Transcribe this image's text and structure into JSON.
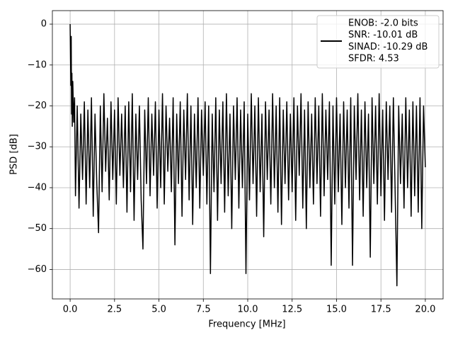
{
  "chart_data": {
    "type": "line",
    "xlabel": "Frequency [MHz]",
    "ylabel": "PSD [dB]",
    "grid": true,
    "legend": "upper right",
    "xlim": [
      -1.0,
      21.0
    ],
    "ylim": [
      -67.2,
      3.3
    ],
    "xticks": [
      {
        "value": 0,
        "label": "0.0"
      },
      2.5,
      {
        "value": 5,
        "label": "5.0"
      },
      7.5,
      {
        "value": 10,
        "label": "10.0"
      },
      12.5,
      {
        "value": 15,
        "label": "15.0"
      },
      17.5,
      {
        "value": 20,
        "label": "20.0"
      }
    ],
    "yticks": [
      0,
      {
        "value": -10,
        "label": "−10"
      },
      {
        "value": -20,
        "label": "−20"
      },
      {
        "value": -30,
        "label": "−30"
      },
      {
        "value": -40,
        "label": "−40"
      },
      {
        "value": -50,
        "label": "−50"
      },
      {
        "value": -60,
        "label": "−60"
      }
    ],
    "x": [
      0,
      0.02,
      0.04,
      0.06,
      0.08,
      0.1,
      0.12,
      0.15,
      0.2,
      0.25,
      0.3,
      0.4,
      0.5,
      0.6,
      0.7,
      0.8,
      0.9,
      1.0,
      1.1,
      1.2,
      1.3,
      1.4,
      1.5,
      1.6,
      1.7,
      1.8,
      1.9,
      2.0,
      2.1,
      2.2,
      2.3,
      2.4,
      2.5,
      2.6,
      2.7,
      2.8,
      2.9,
      3.0,
      3.1,
      3.2,
      3.3,
      3.4,
      3.5,
      3.6,
      3.7,
      3.8,
      3.9,
      4.0,
      4.1,
      4.2,
      4.3,
      4.4,
      4.5,
      4.6,
      4.7,
      4.8,
      4.9,
      5.0,
      5.1,
      5.2,
      5.3,
      5.4,
      5.5,
      5.6,
      5.7,
      5.8,
      5.9,
      6.0,
      6.1,
      6.2,
      6.3,
      6.4,
      6.5,
      6.6,
      6.7,
      6.8,
      6.9,
      7.0,
      7.1,
      7.2,
      7.3,
      7.4,
      7.5,
      7.6,
      7.7,
      7.8,
      7.9,
      8.0,
      8.1,
      8.2,
      8.3,
      8.4,
      8.5,
      8.6,
      8.7,
      8.8,
      8.9,
      9.0,
      9.1,
      9.2,
      9.3,
      9.4,
      9.5,
      9.6,
      9.7,
      9.8,
      9.9,
      10.0,
      10.1,
      10.2,
      10.3,
      10.4,
      10.5,
      10.6,
      10.7,
      10.8,
      10.9,
      11.0,
      11.1,
      11.2,
      11.3,
      11.4,
      11.5,
      11.6,
      11.7,
      11.8,
      11.9,
      12.0,
      12.1,
      12.2,
      12.3,
      12.4,
      12.5,
      12.6,
      12.7,
      12.8,
      12.9,
      13.0,
      13.1,
      13.2,
      13.3,
      13.4,
      13.5,
      13.6,
      13.7,
      13.8,
      13.9,
      14.0,
      14.1,
      14.2,
      14.3,
      14.4,
      14.5,
      14.6,
      14.7,
      14.8,
      14.9,
      15.0,
      15.1,
      15.2,
      15.3,
      15.4,
      15.5,
      15.6,
      15.7,
      15.8,
      15.9,
      16.0,
      16.1,
      16.2,
      16.3,
      16.4,
      16.5,
      16.6,
      16.7,
      16.8,
      16.9,
      17.0,
      17.1,
      17.2,
      17.3,
      17.4,
      17.5,
      17.6,
      17.7,
      17.8,
      17.9,
      18.0,
      18.1,
      18.2,
      18.3,
      18.4,
      18.5,
      18.6,
      18.7,
      18.8,
      18.9,
      19.0,
      19.1,
      19.2,
      19.3,
      19.4,
      19.5,
      19.6,
      19.7,
      19.8,
      19.9,
      20.0
    ],
    "series": [
      {
        "name": [
          "ENOB: -2.0 bits",
          "SNR: -10.01 dB",
          "SINAD: -10.29 dB",
          "SFDR: 4.53"
        ],
        "color": "#000000",
        "values": [
          0,
          -8,
          -15,
          -3,
          -22,
          -12,
          -25,
          -14,
          -24,
          -18,
          -42,
          -20,
          -45,
          -22,
          -38,
          -19,
          -44,
          -21,
          -40,
          -18,
          -47,
          -22,
          -39,
          -51,
          -20,
          -41,
          -17,
          -36,
          -23,
          -43,
          -19,
          -38,
          -21,
          -44,
          -18,
          -37,
          -22,
          -40,
          -20,
          -46,
          -19,
          -41,
          -17,
          -48,
          -22,
          -38,
          -20,
          -43,
          -55,
          -21,
          -39,
          -18,
          -42,
          -22,
          -37,
          -19,
          -45,
          -21,
          -40,
          -17,
          -44,
          -20,
          -36,
          -23,
          -41,
          -18,
          -54,
          -22,
          -39,
          -19,
          -47,
          -21,
          -38,
          -17,
          -43,
          -20,
          -49,
          -22,
          -40,
          -18,
          -45,
          -21,
          -37,
          -19,
          -44,
          -20,
          -61,
          -22,
          -41,
          -18,
          -48,
          -21,
          -39,
          -19,
          -46,
          -17,
          -42,
          -22,
          -50,
          -20,
          -38,
          -18,
          -45,
          -21,
          -40,
          -19,
          -61,
          -22,
          -43,
          -17,
          -39,
          -20,
          -47,
          -18,
          -41,
          -22,
          -52,
          -19,
          -38,
          -21,
          -44,
          -17,
          -40,
          -20,
          -46,
          -18,
          -49,
          -21,
          -39,
          -19,
          -43,
          -22,
          -41,
          -18,
          -48,
          -20,
          -37,
          -17,
          -45,
          -21,
          -50,
          -19,
          -40,
          -22,
          -44,
          -18,
          -39,
          -20,
          -47,
          -17,
          -42,
          -21,
          -38,
          -19,
          -59,
          -20,
          -44,
          -18,
          -41,
          -22,
          -49,
          -19,
          -40,
          -21,
          -45,
          -18,
          -59,
          -20,
          -38,
          -17,
          -43,
          -21,
          -47,
          -19,
          -40,
          -22,
          -57,
          -18,
          -39,
          -20,
          -44,
          -17,
          -42,
          -21,
          -48,
          -19,
          -38,
          -20,
          -46,
          -18,
          -41,
          -64,
          -20,
          -39,
          -22,
          -45,
          -18,
          -40,
          -21,
          -47,
          -19,
          -42,
          -20,
          -46,
          -18,
          -50,
          -20,
          -35
        ]
      }
    ]
  }
}
